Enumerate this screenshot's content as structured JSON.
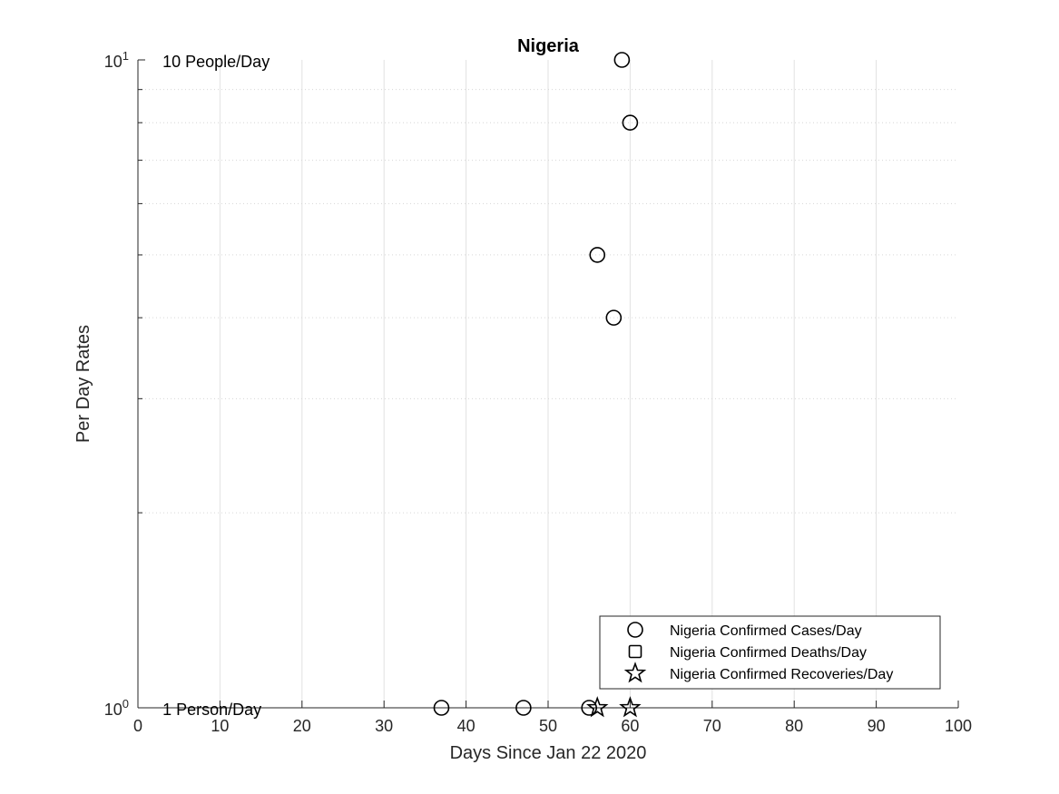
{
  "chart_data": {
    "type": "scatter",
    "title": "Nigeria",
    "xlabel": "Days Since Jan 22 2020",
    "ylabel": "Per Day Rates",
    "xlim": [
      0,
      100
    ],
    "ylim": [
      1,
      10
    ],
    "yscale": "log",
    "grid": true,
    "x_ticks": [
      0,
      10,
      20,
      30,
      40,
      50,
      60,
      70,
      80,
      90,
      100
    ],
    "x_tick_labels": [
      "0",
      "10",
      "20",
      "30",
      "40",
      "50",
      "60",
      "70",
      "80",
      "90",
      "100"
    ],
    "y_ticks": [
      {
        "value": 1,
        "base": "10",
        "exponent": "0"
      },
      {
        "value": 10,
        "base": "10",
        "exponent": "1"
      }
    ],
    "annotations": [
      {
        "text": "10 People/Day",
        "x": 3,
        "y": 10
      },
      {
        "text": "1 Person/Day",
        "x": 3,
        "y": 1
      }
    ],
    "legend_position": "bottom-right",
    "series": [
      {
        "name": "Nigeria Confirmed Cases/Day",
        "marker": "circle",
        "color": "#000000",
        "points": [
          {
            "x": 37,
            "y": 1
          },
          {
            "x": 47,
            "y": 1
          },
          {
            "x": 55,
            "y": 1
          },
          {
            "x": 56,
            "y": 5
          },
          {
            "x": 58,
            "y": 4
          },
          {
            "x": 59,
            "y": 10
          },
          {
            "x": 60,
            "y": 8
          }
        ]
      },
      {
        "name": "Nigeria Confirmed Deaths/Day",
        "marker": "square",
        "color": "#000000",
        "points": []
      },
      {
        "name": "Nigeria Confirmed Recoveries/Day",
        "marker": "star",
        "color": "#000000",
        "points": [
          {
            "x": 56,
            "y": 1
          },
          {
            "x": 60,
            "y": 1
          }
        ]
      }
    ]
  }
}
